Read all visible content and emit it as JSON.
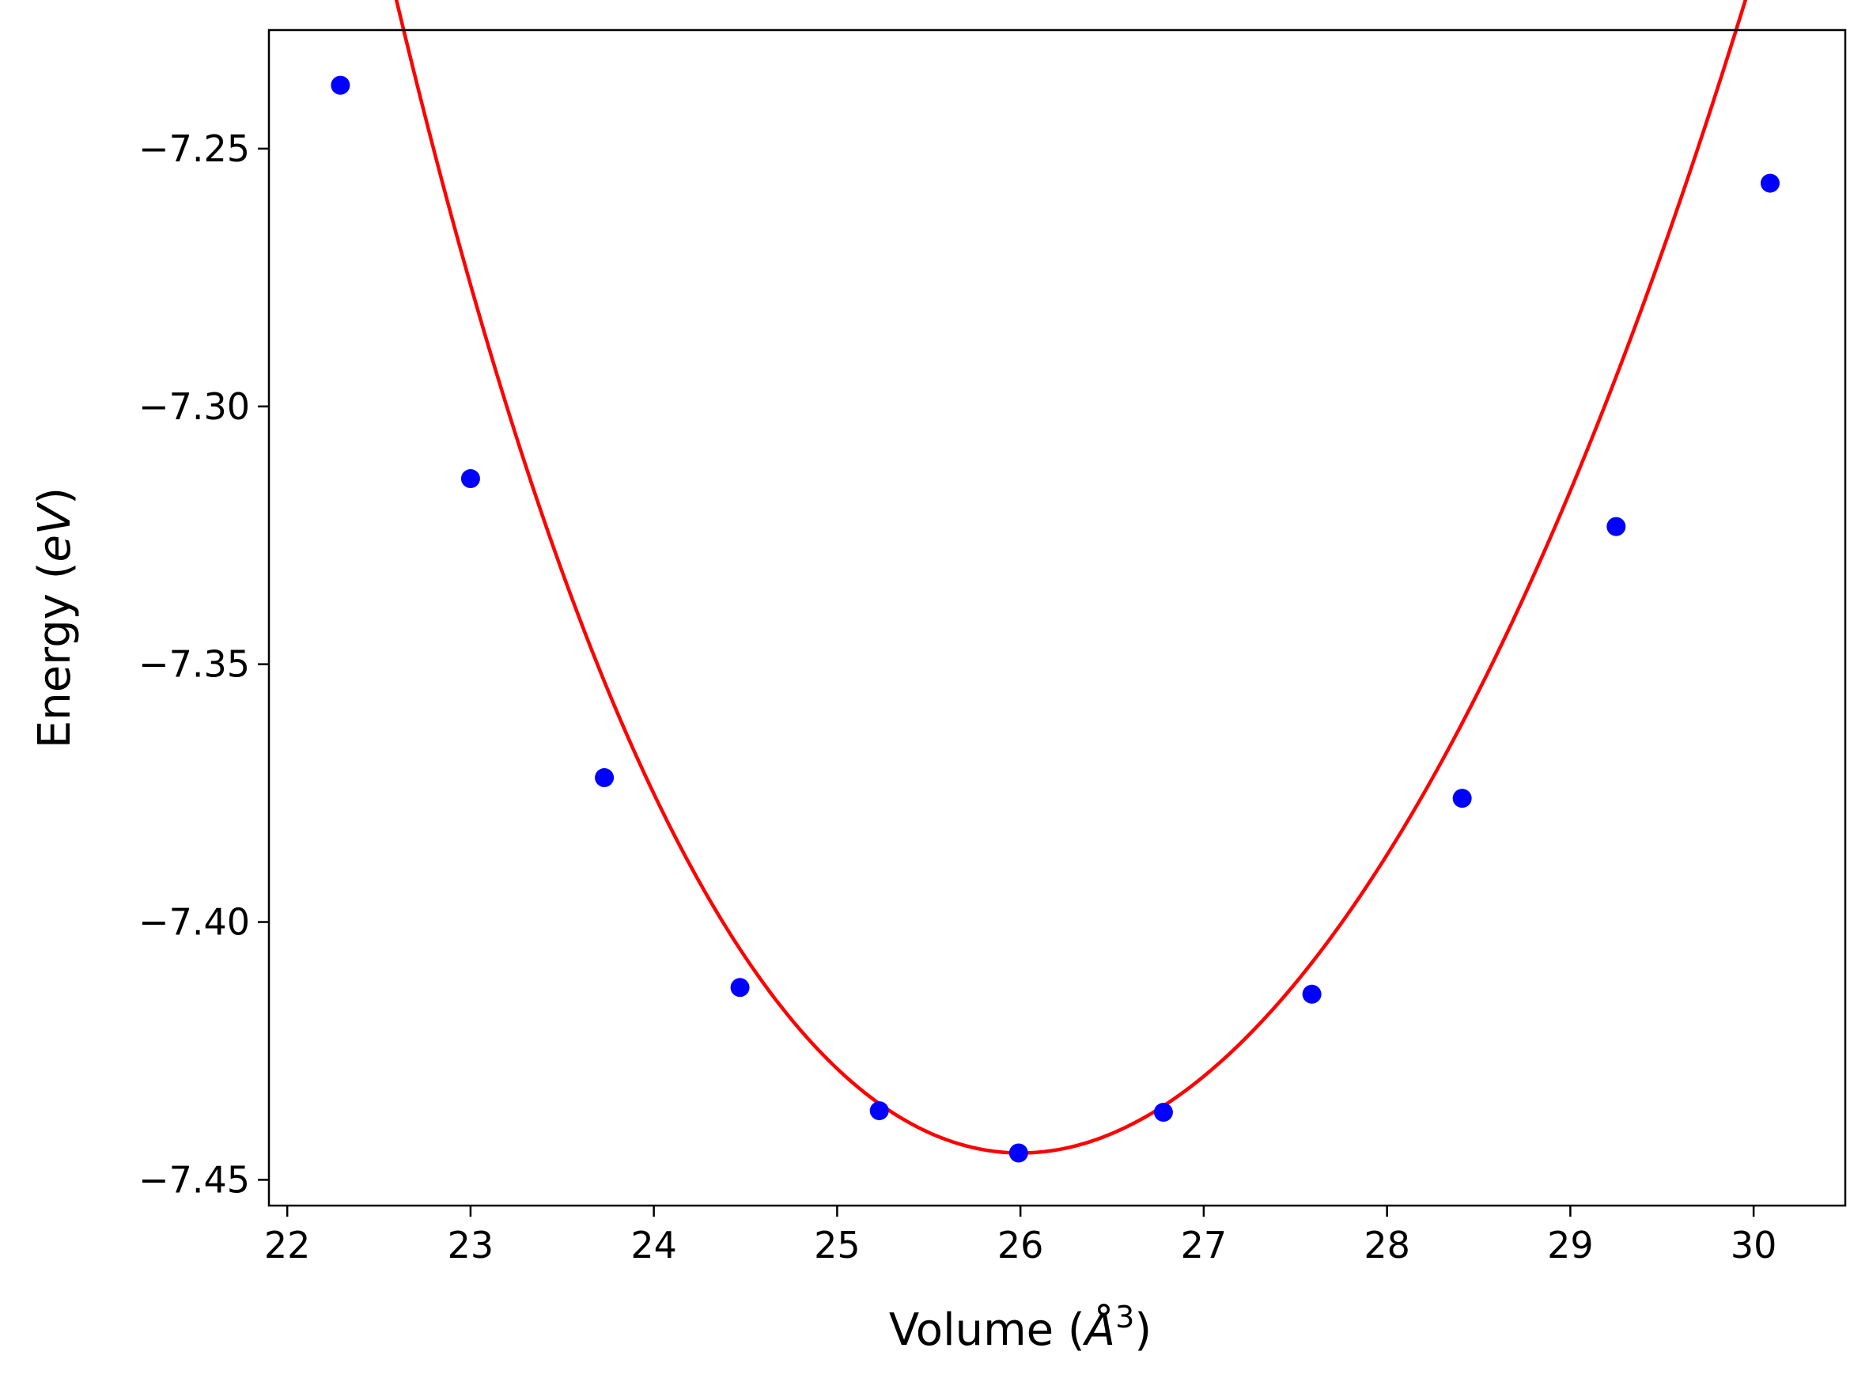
{
  "chart_data": {
    "type": "scatter",
    "title": "",
    "xlabel": "Volume (Å³)",
    "ylabel": "Energy (eV)",
    "xlabel_parts": {
      "prefix": "Volume (",
      "unit": "Å",
      "exponent": "3",
      "suffix": ")"
    },
    "ylabel_parts": {
      "prefix": "Energy (",
      "unit": "eV",
      "suffix": ")"
    },
    "xlim": [
      21.9,
      30.5
    ],
    "ylim": [
      -7.455,
      -7.227
    ],
    "x_ticks": [
      22,
      23,
      24,
      25,
      26,
      27,
      28,
      29,
      30
    ],
    "x_tick_labels": [
      "22",
      "23",
      "24",
      "25",
      "26",
      "27",
      "28",
      "29",
      "30"
    ],
    "y_ticks": [
      -7.25,
      -7.3,
      -7.35,
      -7.4,
      -7.45
    ],
    "y_tick_labels": [
      "−7.25",
      "−7.30",
      "−7.35",
      "−7.40",
      "−7.45"
    ],
    "grid": false,
    "legend": "none",
    "series": [
      {
        "type": "scatter",
        "color": "#0000ff",
        "x": [
          22.29,
          23.0,
          23.73,
          24.47,
          25.23,
          25.99,
          26.78,
          27.59,
          28.41,
          29.25,
          30.09
        ],
        "y": [
          -7.2377,
          -7.314,
          -7.372,
          -7.4127,
          -7.4366,
          -7.4448,
          -7.4369,
          -7.414,
          -7.376,
          -7.3233,
          -7.2567
        ]
      },
      {
        "type": "line",
        "color": "#ff0000",
        "fit": {
          "kind": "quartic",
          "x0": 26.0,
          "coefficients": [
            -7.4448,
            0.0,
            0.0155,
            -0.00074,
            0.00011
          ],
          "x_range": [
            22.29,
            30.09
          ]
        }
      }
    ]
  }
}
